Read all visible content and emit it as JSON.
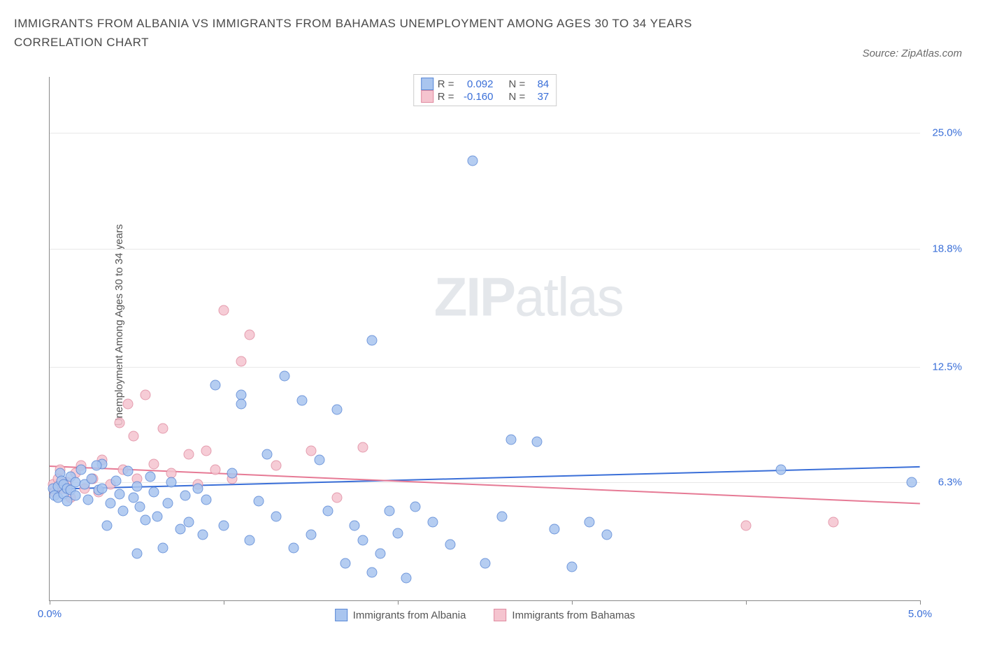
{
  "title": "IMMIGRANTS FROM ALBANIA VS IMMIGRANTS FROM BAHAMAS UNEMPLOYMENT AMONG AGES 30 TO 34 YEARS CORRELATION CHART",
  "source": "Source: ZipAtlas.com",
  "watermark_a": "ZIP",
  "watermark_b": "atlas",
  "chart": {
    "type": "scatter",
    "y_axis_label": "Unemployment Among Ages 30 to 34 years",
    "xlim": [
      0,
      5
    ],
    "ylim": [
      0,
      28
    ],
    "x_ticks": [
      0,
      1,
      2,
      3,
      4,
      5
    ],
    "x_tick_labels": {
      "0": "0.0%",
      "5": "5.0%"
    },
    "y_gridlines": [
      6.3,
      12.5,
      18.8,
      25.0
    ],
    "y_tick_labels": [
      "6.3%",
      "12.5%",
      "18.8%",
      "25.0%"
    ],
    "background_color": "#ffffff",
    "grid_color": "#e8e8e8",
    "series": [
      {
        "name": "Immigrants from Albania",
        "short": "albania",
        "marker_fill": "#a9c5ef",
        "marker_stroke": "#5a88d6",
        "line_color": "#3a6fd8",
        "R": "0.092",
        "N": "84",
        "trend": {
          "y_at_x0": 6.0,
          "y_at_x5": 7.2
        },
        "points": [
          [
            0.02,
            6.0
          ],
          [
            0.03,
            5.6
          ],
          [
            0.05,
            6.1
          ],
          [
            0.05,
            5.5
          ],
          [
            0.06,
            6.8
          ],
          [
            0.07,
            6.4
          ],
          [
            0.08,
            5.7
          ],
          [
            0.08,
            6.2
          ],
          [
            0.1,
            6.0
          ],
          [
            0.1,
            5.3
          ],
          [
            0.12,
            6.6
          ],
          [
            0.12,
            5.9
          ],
          [
            0.15,
            6.3
          ],
          [
            0.15,
            5.6
          ],
          [
            0.18,
            7.0
          ],
          [
            0.2,
            6.2
          ],
          [
            0.22,
            5.4
          ],
          [
            0.24,
            6.5
          ],
          [
            0.28,
            5.9
          ],
          [
            0.3,
            7.3
          ],
          [
            0.3,
            6.0
          ],
          [
            0.35,
            5.2
          ],
          [
            0.38,
            6.4
          ],
          [
            0.4,
            5.7
          ],
          [
            0.42,
            4.8
          ],
          [
            0.45,
            6.9
          ],
          [
            0.48,
            5.5
          ],
          [
            0.5,
            6.1
          ],
          [
            0.5,
            2.5
          ],
          [
            0.52,
            5.0
          ],
          [
            0.55,
            4.3
          ],
          [
            0.58,
            6.6
          ],
          [
            0.6,
            5.8
          ],
          [
            0.62,
            4.5
          ],
          [
            0.65,
            2.8
          ],
          [
            0.68,
            5.2
          ],
          [
            0.7,
            6.3
          ],
          [
            0.75,
            3.8
          ],
          [
            0.78,
            5.6
          ],
          [
            0.8,
            4.2
          ],
          [
            0.85,
            6.0
          ],
          [
            0.88,
            3.5
          ],
          [
            0.9,
            5.4
          ],
          [
            0.95,
            11.5
          ],
          [
            1.0,
            4.0
          ],
          [
            1.05,
            6.8
          ],
          [
            1.1,
            11.0
          ],
          [
            1.1,
            10.5
          ],
          [
            1.15,
            3.2
          ],
          [
            1.2,
            5.3
          ],
          [
            1.25,
            7.8
          ],
          [
            1.3,
            4.5
          ],
          [
            1.35,
            12.0
          ],
          [
            1.4,
            2.8
          ],
          [
            1.45,
            10.7
          ],
          [
            1.5,
            3.5
          ],
          [
            1.55,
            7.5
          ],
          [
            1.6,
            4.8
          ],
          [
            1.65,
            10.2
          ],
          [
            1.7,
            2.0
          ],
          [
            1.75,
            4.0
          ],
          [
            1.8,
            3.2
          ],
          [
            1.85,
            13.9
          ],
          [
            1.85,
            1.5
          ],
          [
            1.9,
            2.5
          ],
          [
            1.95,
            4.8
          ],
          [
            2.0,
            3.6
          ],
          [
            2.05,
            1.2
          ],
          [
            2.1,
            5.0
          ],
          [
            2.2,
            4.2
          ],
          [
            2.3,
            3.0
          ],
          [
            2.43,
            23.5
          ],
          [
            2.5,
            2.0
          ],
          [
            2.6,
            4.5
          ],
          [
            2.65,
            8.6
          ],
          [
            2.8,
            8.5
          ],
          [
            2.9,
            3.8
          ],
          [
            3.0,
            1.8
          ],
          [
            3.1,
            4.2
          ],
          [
            3.2,
            3.5
          ],
          [
            4.2,
            7.0
          ],
          [
            4.95,
            6.3
          ],
          [
            0.33,
            4.0
          ],
          [
            0.27,
            7.2
          ]
        ]
      },
      {
        "name": "Immigrants from Bahamas",
        "short": "bahamas",
        "marker_fill": "#f5c4cf",
        "marker_stroke": "#e08ba0",
        "line_color": "#e67a95",
        "R": "-0.160",
        "N": "37",
        "trend": {
          "y_at_x0": 7.2,
          "y_at_x5": 5.2
        },
        "points": [
          [
            0.02,
            6.2
          ],
          [
            0.03,
            5.8
          ],
          [
            0.05,
            6.5
          ],
          [
            0.06,
            7.0
          ],
          [
            0.08,
            6.0
          ],
          [
            0.1,
            6.3
          ],
          [
            0.12,
            5.5
          ],
          [
            0.15,
            6.8
          ],
          [
            0.18,
            7.2
          ],
          [
            0.2,
            6.0
          ],
          [
            0.25,
            6.5
          ],
          [
            0.28,
            5.8
          ],
          [
            0.3,
            7.5
          ],
          [
            0.35,
            6.2
          ],
          [
            0.4,
            9.5
          ],
          [
            0.42,
            7.0
          ],
          [
            0.45,
            10.5
          ],
          [
            0.48,
            8.8
          ],
          [
            0.5,
            6.5
          ],
          [
            0.55,
            11.0
          ],
          [
            0.6,
            7.3
          ],
          [
            0.65,
            9.2
          ],
          [
            0.7,
            6.8
          ],
          [
            0.8,
            7.8
          ],
          [
            0.85,
            6.2
          ],
          [
            0.9,
            8.0
          ],
          [
            0.95,
            7.0
          ],
          [
            1.0,
            15.5
          ],
          [
            1.05,
            6.5
          ],
          [
            1.1,
            12.8
          ],
          [
            1.15,
            14.2
          ],
          [
            1.3,
            7.2
          ],
          [
            1.5,
            8.0
          ],
          [
            1.65,
            5.5
          ],
          [
            1.8,
            8.2
          ],
          [
            4.0,
            4.0
          ],
          [
            4.5,
            4.2
          ]
        ]
      }
    ]
  },
  "legend_top_labels": {
    "R": "R =",
    "N": "N ="
  },
  "legend_bottom": [
    {
      "label": "Immigrants from Albania",
      "fill": "#a9c5ef",
      "stroke": "#5a88d6"
    },
    {
      "label": "Immigrants from Bahamas",
      "fill": "#f5c4cf",
      "stroke": "#e08ba0"
    }
  ]
}
